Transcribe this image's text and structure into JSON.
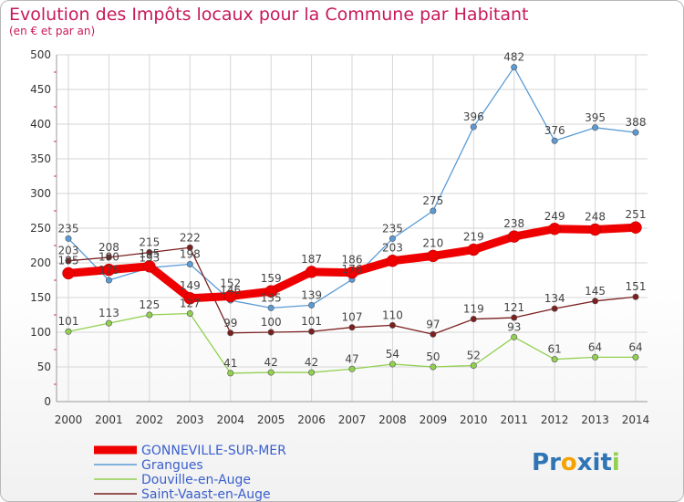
{
  "chart_data": {
    "type": "line",
    "title": "Evolution des Impôts locaux pour la Commune par Habitant",
    "subtitle": "(en € et par an)",
    "x": [
      "2000",
      "2001",
      "2002",
      "2003",
      "2004",
      "2005",
      "2006",
      "2007",
      "2008",
      "2009",
      "2010",
      "2011",
      "2012",
      "2013",
      "2014"
    ],
    "ylim": [
      0,
      500
    ],
    "yticks": [
      0,
      50,
      100,
      150,
      200,
      250,
      300,
      350,
      400,
      450,
      500
    ],
    "grid": true,
    "legend_position": "bottom-left",
    "series": [
      {
        "name": "GONNEVILLE-SUR-MER",
        "color": "#ee0000",
        "emphasis": true,
        "values": [
          185,
          190,
          195,
          149,
          152,
          159,
          187,
          186,
          203,
          210,
          219,
          238,
          249,
          248,
          251
        ]
      },
      {
        "name": "Grangues",
        "color": "#5b9bd5",
        "values": [
          235,
          175,
          193,
          198,
          146,
          135,
          139,
          176,
          235,
          275,
          396,
          482,
          376,
          395,
          388
        ]
      },
      {
        "name": "Douville-en-Auge",
        "color": "#92d050",
        "values": [
          101,
          113,
          125,
          127,
          41,
          42,
          42,
          47,
          54,
          50,
          52,
          93,
          61,
          64,
          64
        ]
      },
      {
        "name": "Saint-Vaast-en-Auge",
        "color": "#7b1f1f",
        "values": [
          203,
          208,
          215,
          222,
          99,
          100,
          101,
          107,
          110,
          97,
          119,
          121,
          134,
          145,
          151
        ]
      }
    ]
  },
  "brand": {
    "letters": [
      "P",
      "r",
      "o",
      "x",
      "i",
      "t",
      "i"
    ],
    "colors": [
      "#2f75b5",
      "#2f75b5",
      "#f4a300",
      "#2f75b5",
      "#2f75b5",
      "#2f75b5",
      "#92d050"
    ]
  }
}
